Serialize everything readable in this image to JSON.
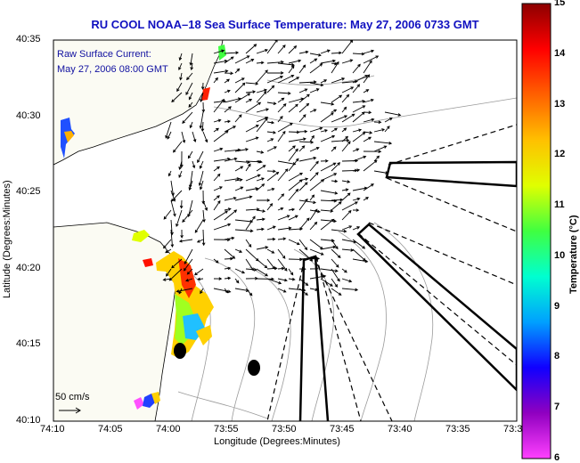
{
  "title": "RU COOL  NOAA–18  Sea Surface Temperature:  May 27, 2006 0733 GMT",
  "current_legend": {
    "line1": "Raw Surface Current:",
    "line2": "May 27, 2006 08:00 GMT"
  },
  "scale_label": "50 cm/s",
  "axes": {
    "xlabel": "Longitude (Degrees:Minutes)",
    "ylabel": "Latitude (Degrees:Minutes)",
    "x_ticks": [
      "74:10",
      "74:05",
      "74:00",
      "73:55",
      "73:50",
      "73:45",
      "73:40",
      "73:35",
      "73:3"
    ],
    "y_ticks": [
      "40:35",
      "40:30",
      "40:25",
      "40:20",
      "40:15",
      "40:10"
    ]
  },
  "colorbar": {
    "label": "Temperature (°C)",
    "ticks": [
      "15",
      "14",
      "13",
      "12",
      "11",
      "10",
      "9",
      "8",
      "7",
      "6"
    ],
    "range": [
      6,
      15
    ],
    "colors": [
      "#ff40ff",
      "#9000c0",
      "#1000ff",
      "#00a0ff",
      "#00ffd0",
      "#40ff40",
      "#e0ff00",
      "#ffc000",
      "#ff6000",
      "#ff0000",
      "#8c0000"
    ]
  }
}
